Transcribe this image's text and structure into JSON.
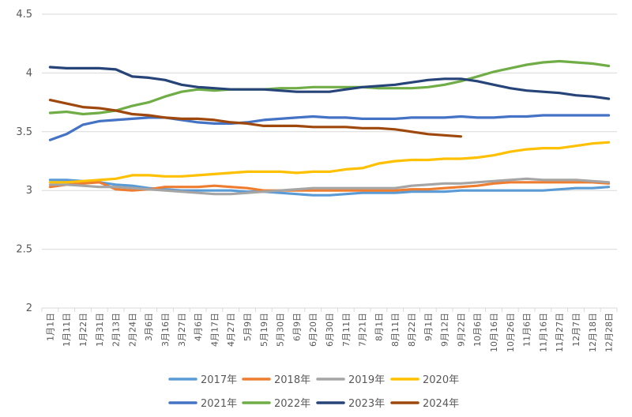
{
  "chart_data": {
    "type": "line",
    "title": "",
    "xlabel": "",
    "ylabel": "",
    "ylim": [
      2,
      4.5
    ],
    "yticks": [
      2,
      2.5,
      3,
      3.5,
      4,
      4.5
    ],
    "ytick_labels": [
      "2",
      "2.5",
      "3",
      "3.5",
      "4",
      "4.5"
    ],
    "grid": "horizontal",
    "legend_position": "bottom",
    "categories": [
      "1月1日",
      "1月11日",
      "1月22日",
      "1月31日",
      "2月13日",
      "2月24日",
      "3月6日",
      "3月16日",
      "3月27日",
      "4月6日",
      "4月17日",
      "4月27日",
      "5月9日",
      "5月19日",
      "5月30日",
      "6月9日",
      "6月20日",
      "6月30日",
      "7月11日",
      "7月21日",
      "8月1日",
      "8月11日",
      "8月22日",
      "9月1日",
      "9月12日",
      "9月22日",
      "10月6日",
      "10月16日",
      "10月26日",
      "11月6日",
      "11月16日",
      "11月27日",
      "12月7日",
      "12月18日",
      "12月28日"
    ],
    "series": [
      {
        "name": "2017年",
        "color": "#5B9BD5",
        "values": [
          3.09,
          3.09,
          3.08,
          3.07,
          3.05,
          3.04,
          3.02,
          3.01,
          3.0,
          3.0,
          3.0,
          3.0,
          2.99,
          2.99,
          2.98,
          2.97,
          2.96,
          2.96,
          2.97,
          2.98,
          2.98,
          2.98,
          2.99,
          2.99,
          2.99,
          3.0,
          3.0,
          3.0,
          3.0,
          3.0,
          3.0,
          3.01,
          3.02,
          3.02,
          3.03
        ]
      },
      {
        "name": "2018年",
        "color": "#ED7D31",
        "values": [
          3.03,
          3.05,
          3.06,
          3.07,
          3.01,
          3.0,
          3.01,
          3.03,
          3.03,
          3.03,
          3.04,
          3.03,
          3.02,
          3.0,
          3.0,
          3.0,
          3.0,
          3.0,
          3.0,
          3.0,
          3.0,
          3.0,
          3.01,
          3.01,
          3.02,
          3.03,
          3.04,
          3.06,
          3.07,
          3.07,
          3.07,
          3.07,
          3.07,
          3.07,
          3.06
        ]
      },
      {
        "name": "2019年",
        "color": "#A5A5A5",
        "values": [
          3.05,
          3.05,
          3.04,
          3.03,
          3.03,
          3.02,
          3.01,
          3.0,
          2.99,
          2.98,
          2.97,
          2.97,
          2.98,
          2.99,
          3.0,
          3.01,
          3.02,
          3.02,
          3.02,
          3.02,
          3.02,
          3.02,
          3.04,
          3.05,
          3.06,
          3.06,
          3.07,
          3.08,
          3.09,
          3.1,
          3.09,
          3.09,
          3.09,
          3.08,
          3.07
        ]
      },
      {
        "name": "2020年",
        "color": "#FFC000",
        "values": [
          3.07,
          3.07,
          3.08,
          3.09,
          3.1,
          3.13,
          3.13,
          3.12,
          3.12,
          3.13,
          3.14,
          3.15,
          3.16,
          3.16,
          3.16,
          3.15,
          3.16,
          3.16,
          3.18,
          3.19,
          3.23,
          3.25,
          3.26,
          3.26,
          3.27,
          3.27,
          3.28,
          3.3,
          3.33,
          3.35,
          3.36,
          3.36,
          3.38,
          3.4,
          3.41
        ]
      },
      {
        "name": "2021年",
        "color": "#4472C4",
        "values": [
          3.43,
          3.48,
          3.56,
          3.59,
          3.6,
          3.61,
          3.62,
          3.62,
          3.6,
          3.58,
          3.57,
          3.57,
          3.58,
          3.6,
          3.61,
          3.62,
          3.63,
          3.62,
          3.62,
          3.61,
          3.61,
          3.61,
          3.62,
          3.62,
          3.62,
          3.63,
          3.62,
          3.62,
          3.63,
          3.63,
          3.64,
          3.64,
          3.64,
          3.64,
          3.64
        ]
      },
      {
        "name": "2022年",
        "color": "#70AD47",
        "values": [
          3.66,
          3.67,
          3.65,
          3.66,
          3.68,
          3.72,
          3.75,
          3.8,
          3.84,
          3.86,
          3.85,
          3.86,
          3.86,
          3.86,
          3.87,
          3.87,
          3.88,
          3.88,
          3.88,
          3.88,
          3.87,
          3.87,
          3.87,
          3.88,
          3.9,
          3.93,
          3.97,
          4.01,
          4.04,
          4.07,
          4.09,
          4.1,
          4.09,
          4.08,
          4.06
        ]
      },
      {
        "name": "2023年",
        "color": "#264478",
        "values": [
          4.05,
          4.04,
          4.04,
          4.04,
          4.03,
          3.97,
          3.96,
          3.94,
          3.9,
          3.88,
          3.87,
          3.86,
          3.86,
          3.86,
          3.85,
          3.84,
          3.84,
          3.84,
          3.86,
          3.88,
          3.89,
          3.9,
          3.92,
          3.94,
          3.95,
          3.95,
          3.93,
          3.9,
          3.87,
          3.85,
          3.84,
          3.83,
          3.81,
          3.8,
          3.78
        ]
      },
      {
        "name": "2024年",
        "color": "#9E480E",
        "values": [
          3.77,
          3.74,
          3.71,
          3.7,
          3.68,
          3.65,
          3.64,
          3.62,
          3.61,
          3.61,
          3.6,
          3.58,
          3.57,
          3.55,
          3.55,
          3.55,
          3.54,
          3.54,
          3.54,
          3.53,
          3.53,
          3.52,
          3.5,
          3.48,
          3.47,
          3.46,
          null,
          null,
          null,
          null,
          null,
          null,
          null,
          null,
          null
        ]
      }
    ]
  }
}
